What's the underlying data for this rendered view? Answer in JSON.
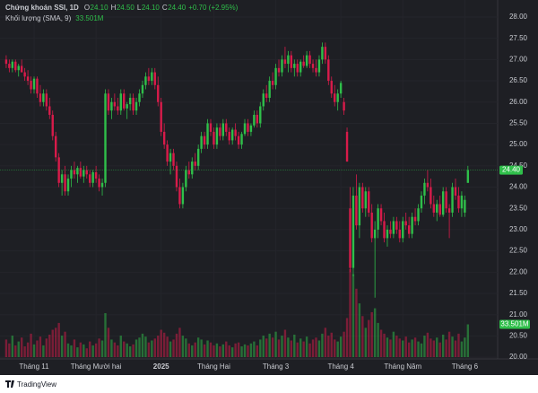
{
  "chart_data": {
    "type": "candlestick",
    "legend": {
      "name": "Chứng khoán SSI, 1D",
      "o_key": "O",
      "o": "24.10",
      "h_key": "H",
      "h": "24.50",
      "l_key": "L",
      "l": "24.10",
      "c_key": "C",
      "c": "24.40",
      "change": "+0.70 (+2.95%)"
    },
    "volume_title": "Khối lượng (SMA, 9)",
    "volume_label": "33.501M",
    "last_price": {
      "value": 24.4,
      "label": "24.40"
    },
    "up_color": "#2fbf4a",
    "down_color": "#d81b4a",
    "ylim": [
      19.96,
      28.4
    ],
    "yticks": [
      {
        "value": 20,
        "label": "20.00"
      },
      {
        "value": 20.5,
        "label": "20.50"
      },
      {
        "value": 21,
        "label": "21.00"
      },
      {
        "value": 21.5,
        "label": "21.50"
      },
      {
        "value": 22,
        "label": "22.00"
      },
      {
        "value": 22.5,
        "label": "22.50"
      },
      {
        "value": 23,
        "label": "23.00"
      },
      {
        "value": 23.5,
        "label": "23.50"
      },
      {
        "value": 24,
        "label": "24.00"
      },
      {
        "value": 24.5,
        "label": "24.50"
      },
      {
        "value": 25,
        "label": "25.00"
      },
      {
        "value": 25.5,
        "label": "25.50"
      },
      {
        "value": 26,
        "label": "26.00"
      },
      {
        "value": 26.5,
        "label": "26.50"
      },
      {
        "value": 27,
        "label": "27.00"
      },
      {
        "value": 27.5,
        "label": "27.50"
      },
      {
        "value": 28,
        "label": "28.00"
      }
    ],
    "xlim": [
      -2,
      158.6
    ],
    "xticks": [
      {
        "value": 9,
        "label": "Tháng 11"
      },
      {
        "value": 29,
        "label": "Tháng Mười hai"
      },
      {
        "value": 50,
        "label": "2025"
      },
      {
        "value": 67,
        "label": "Tháng Hai"
      },
      {
        "value": 87,
        "label": "Tháng 3"
      },
      {
        "value": 108,
        "label": "Tháng 4"
      },
      {
        "value": 128,
        "label": "Tháng Năm"
      },
      {
        "value": 148,
        "label": "Tháng 6"
      }
    ],
    "candles": [
      [
        27.0,
        27.1,
        26.8,
        26.9
      ],
      [
        26.9,
        27.0,
        26.7,
        26.8
      ],
      [
        26.8,
        27.0,
        26.7,
        26.95
      ],
      [
        26.95,
        27.0,
        26.7,
        26.75
      ],
      [
        26.75,
        26.9,
        26.6,
        26.85
      ],
      [
        26.85,
        27.0,
        26.7,
        26.7
      ],
      [
        26.7,
        26.8,
        26.5,
        26.6
      ],
      [
        26.6,
        26.75,
        26.4,
        26.5
      ],
      [
        26.5,
        26.6,
        26.2,
        26.3
      ],
      [
        26.3,
        26.6,
        26.2,
        26.55
      ],
      [
        26.55,
        26.6,
        26.1,
        26.2
      ],
      [
        26.2,
        26.4,
        25.9,
        26.0
      ],
      [
        26.0,
        26.3,
        25.9,
        26.2
      ],
      [
        26.2,
        26.3,
        25.8,
        25.9
      ],
      [
        25.9,
        26.1,
        25.6,
        25.7
      ],
      [
        25.7,
        25.8,
        25.1,
        25.2
      ],
      [
        25.2,
        25.3,
        24.6,
        24.7
      ],
      [
        24.7,
        24.8,
        24.0,
        24.1
      ],
      [
        24.1,
        24.4,
        23.8,
        24.3
      ],
      [
        24.3,
        24.5,
        23.8,
        23.9
      ],
      [
        23.9,
        24.3,
        23.8,
        24.2
      ],
      [
        24.2,
        24.5,
        24.0,
        24.4
      ],
      [
        24.4,
        24.6,
        24.2,
        24.3
      ],
      [
        24.3,
        24.5,
        24.1,
        24.45
      ],
      [
        24.45,
        24.6,
        24.2,
        24.25
      ],
      [
        24.25,
        24.5,
        24.1,
        24.4
      ],
      [
        24.4,
        24.5,
        24.2,
        24.3
      ],
      [
        24.3,
        24.4,
        24.0,
        24.1
      ],
      [
        24.1,
        24.4,
        24.0,
        24.35
      ],
      [
        24.35,
        24.5,
        24.1,
        24.2
      ],
      [
        24.2,
        24.3,
        23.9,
        24.0
      ],
      [
        24.0,
        24.2,
        23.8,
        24.1
      ],
      [
        24.1,
        26.3,
        24.0,
        26.2
      ],
      [
        26.2,
        26.3,
        25.7,
        25.8
      ],
      [
        25.8,
        26.1,
        25.6,
        26.0
      ],
      [
        26.0,
        26.2,
        25.8,
        25.9
      ],
      [
        25.9,
        26.1,
        25.7,
        25.8
      ],
      [
        25.8,
        26.3,
        25.7,
        26.2
      ],
      [
        26.2,
        26.3,
        25.8,
        25.85
      ],
      [
        25.85,
        26.0,
        25.6,
        25.95
      ],
      [
        25.95,
        26.2,
        25.8,
        26.1
      ],
      [
        26.1,
        26.2,
        25.7,
        25.8
      ],
      [
        25.8,
        26.1,
        25.7,
        26.0
      ],
      [
        26.0,
        26.3,
        25.9,
        26.2
      ],
      [
        26.2,
        26.5,
        26.1,
        26.4
      ],
      [
        26.4,
        26.7,
        26.3,
        26.6
      ],
      [
        26.6,
        26.8,
        26.4,
        26.5
      ],
      [
        26.5,
        26.8,
        26.4,
        26.7
      ],
      [
        26.7,
        26.8,
        26.3,
        26.4
      ],
      [
        26.4,
        26.6,
        25.9,
        26.0
      ],
      [
        26.0,
        26.1,
        25.2,
        25.3
      ],
      [
        25.3,
        25.5,
        24.9,
        25.0
      ],
      [
        25.0,
        25.1,
        24.5,
        24.6
      ],
      [
        24.6,
        24.9,
        24.3,
        24.8
      ],
      [
        24.8,
        24.9,
        24.4,
        24.5
      ],
      [
        24.5,
        24.6,
        23.9,
        24.0
      ],
      [
        24.0,
        24.2,
        23.5,
        23.6
      ],
      [
        23.6,
        24.1,
        23.5,
        24.0
      ],
      [
        24.0,
        24.5,
        23.9,
        24.4
      ],
      [
        24.4,
        24.6,
        24.2,
        24.3
      ],
      [
        24.3,
        24.7,
        24.2,
        24.6
      ],
      [
        24.6,
        24.8,
        24.4,
        24.5
      ],
      [
        24.5,
        25.0,
        24.4,
        24.9
      ],
      [
        24.9,
        25.3,
        24.8,
        25.2
      ],
      [
        25.2,
        25.3,
        24.9,
        25.0
      ],
      [
        25.0,
        25.6,
        24.9,
        25.5
      ],
      [
        25.5,
        25.6,
        25.2,
        25.3
      ],
      [
        25.3,
        25.4,
        24.9,
        25.0
      ],
      [
        25.0,
        25.5,
        24.9,
        25.4
      ],
      [
        25.4,
        25.5,
        25.1,
        25.2
      ],
      [
        25.2,
        25.6,
        25.1,
        25.5
      ],
      [
        25.5,
        25.6,
        25.2,
        25.3
      ],
      [
        25.3,
        25.4,
        25.0,
        25.1
      ],
      [
        25.1,
        25.4,
        25.0,
        25.35
      ],
      [
        25.35,
        25.5,
        25.1,
        25.2
      ],
      [
        25.2,
        25.3,
        24.9,
        25.0
      ],
      [
        25.0,
        25.3,
        24.9,
        25.25
      ],
      [
        25.25,
        25.6,
        25.2,
        25.5
      ],
      [
        25.5,
        25.6,
        25.2,
        25.3
      ],
      [
        25.3,
        25.5,
        25.2,
        25.45
      ],
      [
        25.45,
        25.8,
        25.4,
        25.7
      ],
      [
        25.7,
        25.8,
        25.4,
        25.5
      ],
      [
        25.5,
        26.0,
        25.4,
        25.9
      ],
      [
        25.9,
        26.3,
        25.8,
        26.2
      ],
      [
        26.2,
        26.4,
        26.0,
        26.1
      ],
      [
        26.1,
        26.6,
        26.0,
        26.5
      ],
      [
        26.5,
        26.7,
        26.3,
        26.4
      ],
      [
        26.4,
        26.9,
        26.3,
        26.8
      ],
      [
        26.8,
        27.0,
        26.6,
        26.7
      ],
      [
        26.7,
        27.1,
        26.6,
        27.0
      ],
      [
        27.0,
        27.3,
        26.8,
        26.9
      ],
      [
        26.9,
        27.2,
        26.7,
        27.1
      ],
      [
        27.1,
        27.2,
        26.7,
        26.8
      ],
      [
        26.8,
        27.0,
        26.6,
        26.9
      ],
      [
        26.9,
        27.0,
        26.6,
        26.7
      ],
      [
        26.7,
        27.0,
        26.6,
        26.95
      ],
      [
        26.95,
        27.1,
        26.8,
        26.85
      ],
      [
        26.85,
        27.2,
        26.8,
        27.1
      ],
      [
        27.1,
        27.2,
        26.8,
        26.9
      ],
      [
        26.9,
        27.0,
        26.7,
        26.8
      ],
      [
        26.8,
        27.0,
        26.6,
        26.7
      ],
      [
        26.7,
        27.1,
        26.6,
        27.0
      ],
      [
        27.0,
        27.4,
        26.9,
        27.3
      ],
      [
        27.3,
        27.4,
        26.9,
        27.0
      ],
      [
        27.0,
        27.1,
        26.4,
        26.5
      ],
      [
        26.5,
        26.6,
        26.1,
        26.2
      ],
      [
        26.2,
        26.4,
        25.9,
        26.0
      ],
      [
        26.0,
        26.3,
        25.8,
        26.2
      ],
      [
        26.2,
        26.5,
        26.1,
        26.45
      ],
      [
        26.0,
        26.1,
        25.7,
        25.8
      ],
      [
        25.3,
        25.4,
        24.6,
        24.6
      ],
      [
        23.5,
        24.0,
        22.0,
        22.1
      ],
      [
        22.1,
        24.0,
        21.9,
        23.8
      ],
      [
        23.8,
        24.3,
        23.0,
        23.1
      ],
      [
        23.1,
        24.1,
        22.8,
        24.0
      ],
      [
        24.0,
        24.1,
        23.4,
        23.5
      ],
      [
        23.5,
        24.0,
        23.3,
        23.9
      ],
      [
        23.9,
        24.0,
        23.3,
        23.4
      ],
      [
        23.4,
        23.6,
        22.7,
        22.8
      ],
      [
        22.8,
        23.2,
        21.4,
        23.0
      ],
      [
        23.0,
        23.6,
        22.8,
        23.5
      ],
      [
        23.5,
        23.6,
        23.1,
        23.2
      ],
      [
        23.2,
        23.4,
        22.7,
        22.8
      ],
      [
        22.8,
        23.1,
        22.6,
        23.0
      ],
      [
        23.0,
        23.2,
        22.8,
        22.9
      ],
      [
        22.9,
        23.3,
        22.8,
        23.2
      ],
      [
        23.2,
        23.3,
        22.9,
        23.0
      ],
      [
        23.0,
        23.2,
        22.7,
        22.8
      ],
      [
        22.8,
        23.3,
        22.7,
        23.2
      ],
      [
        23.2,
        23.4,
        23.0,
        23.1
      ],
      [
        23.1,
        23.3,
        22.8,
        22.9
      ],
      [
        22.9,
        23.4,
        22.8,
        23.3
      ],
      [
        23.3,
        23.5,
        23.1,
        23.2
      ],
      [
        23.2,
        23.6,
        23.1,
        23.5
      ],
      [
        23.5,
        23.9,
        23.4,
        23.8
      ],
      [
        23.8,
        24.2,
        23.6,
        24.1
      ],
      [
        24.1,
        24.4,
        23.9,
        24.0
      ],
      [
        24.0,
        24.2,
        23.5,
        23.6
      ],
      [
        23.6,
        23.8,
        23.3,
        23.4
      ],
      [
        23.4,
        23.7,
        23.2,
        23.6
      ],
      [
        23.6,
        23.8,
        23.3,
        23.35
      ],
      [
        23.35,
        24.0,
        23.3,
        23.9
      ],
      [
        23.9,
        24.0,
        23.4,
        23.5
      ],
      [
        23.5,
        23.6,
        22.8,
        23.4
      ],
      [
        23.4,
        24.1,
        23.3,
        24.0
      ],
      [
        24.0,
        24.2,
        23.7,
        23.8
      ],
      [
        23.8,
        24.0,
        23.4,
        23.5
      ],
      [
        23.5,
        23.9,
        23.3,
        23.8
      ],
      [
        23.4,
        23.8,
        23.3,
        23.7
      ],
      [
        24.1,
        24.5,
        24.1,
        24.4
      ]
    ],
    "volume": [
      18,
      14,
      22,
      12,
      16,
      20,
      11,
      15,
      24,
      13,
      17,
      21,
      12,
      19,
      23,
      28,
      30,
      35,
      22,
      26,
      14,
      12,
      18,
      10,
      15,
      13,
      9,
      16,
      12,
      14,
      19,
      17,
      45,
      30,
      18,
      15,
      12,
      22,
      16,
      14,
      11,
      13,
      18,
      20,
      24,
      21,
      15,
      17,
      19,
      22,
      28,
      25,
      21,
      16,
      18,
      24,
      30,
      22,
      19,
      14,
      12,
      15,
      20,
      18,
      13,
      17,
      15,
      12,
      14,
      11,
      13,
      16,
      12,
      10,
      14,
      15,
      11,
      13,
      12,
      14,
      16,
      12,
      18,
      22,
      19,
      24,
      20,
      26,
      18,
      22,
      28,
      20,
      17,
      23,
      15,
      19,
      16,
      21,
      14,
      18,
      20,
      17,
      24,
      30,
      22,
      25,
      18,
      16,
      21,
      26,
      40,
      90,
      85,
      70,
      55,
      42,
      30,
      38,
      46,
      50,
      35,
      28,
      24,
      20,
      18,
      26,
      22,
      19,
      17,
      21,
      15,
      18,
      20,
      16,
      14,
      22,
      25,
      19,
      17,
      20,
      15,
      23,
      18,
      26,
      21,
      17,
      24,
      16,
      20,
      33.501
    ]
  }
}
